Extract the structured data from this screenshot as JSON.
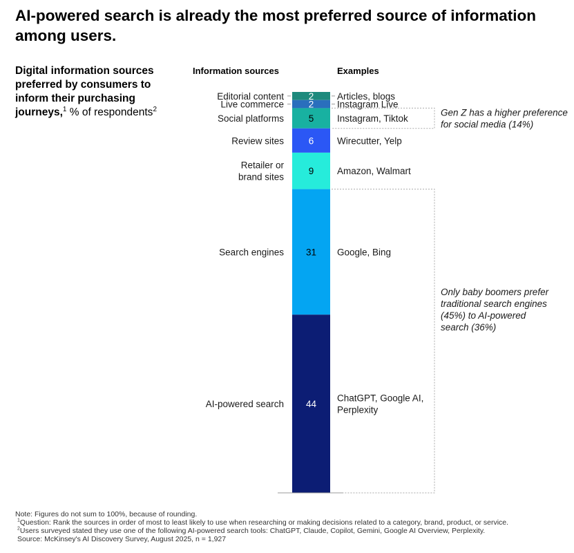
{
  "headline": "AI-powered search is already the most preferred source of information among users.",
  "subtitle": {
    "bold": "Digital information sources preferred by consumers to inform their purchasing journeys,",
    "sup1": "1",
    "unit": " % of respondents",
    "sup2": "2"
  },
  "chart_data": {
    "type": "bar",
    "orientation": "stacked-vertical",
    "title": "Digital information sources preferred by consumers to inform their purchasing journeys, % of respondents",
    "column_headers": {
      "sources": "Information sources",
      "examples": "Examples"
    },
    "ylim": [
      0,
      100
    ],
    "segments": [
      {
        "source": "Editorial content",
        "value": 2,
        "example": "Articles, blogs",
        "color": "#1e8a7d",
        "text_color": "#ffffff"
      },
      {
        "source": "Live commerce",
        "value": 2,
        "example": "Instagram Live",
        "color": "#2a6fbd",
        "text_color": "#ffffff"
      },
      {
        "source": "Social platforms",
        "value": 5,
        "example": "Instagram, Tiktok",
        "color": "#18b1a1",
        "text_color": "#000000"
      },
      {
        "source": "Review sites",
        "value": 6,
        "example": "Wirecutter, Yelp",
        "color": "#2b57f5",
        "text_color": "#ffffff"
      },
      {
        "source": "Retailer or brand sites",
        "source_lines": [
          "Retailer or",
          "brand sites"
        ],
        "value": 9,
        "example": "Amazon, Walmart",
        "color": "#26ecdb",
        "text_color": "#000000"
      },
      {
        "source": "Search engines",
        "value": 31,
        "example": "Google, Bing",
        "color": "#04a5f2",
        "text_color": "#000000"
      },
      {
        "source": "AI-powered search",
        "value": 44,
        "example": "ChatGPT, Google AI, Perplexity",
        "example_lines": [
          "ChatGPT, Google AI,",
          "Perplexity"
        ],
        "color": "#0c1d74",
        "text_color": "#ffffff"
      }
    ],
    "annotations": [
      {
        "text": "Gen Z has a higher preference for social media (14%)",
        "lines": [
          "Gen Z has a higher preference",
          "for social media (14%)"
        ],
        "spans": [
          "Social platforms"
        ]
      },
      {
        "text": "Only baby boomers prefer traditional search engines (45%) to AI-powered search (36%)",
        "lines": [
          "Only baby boomers prefer",
          "traditional search engines",
          "(45%) to AI-powered",
          "search (36%)"
        ],
        "spans": [
          "Search engines",
          "AI-powered search"
        ]
      }
    ]
  },
  "notes": {
    "note": "Note: Figures do not sum to 100%, because of rounding.",
    "q_sup": "1",
    "question": "Question: Rank the sources in order of most to least likely to use when researching or making decisions related to a category, brand, product, or service.",
    "u_sup": "2",
    "users": "Users surveyed stated they use one of the following AI-powered search tools: ChatGPT, Claude, Copilot, Gemini, Google AI Overview, Perplexity.",
    "source": "Source: McKinsey's AI Discovery Survey, August 2025, n = 1,927"
  }
}
